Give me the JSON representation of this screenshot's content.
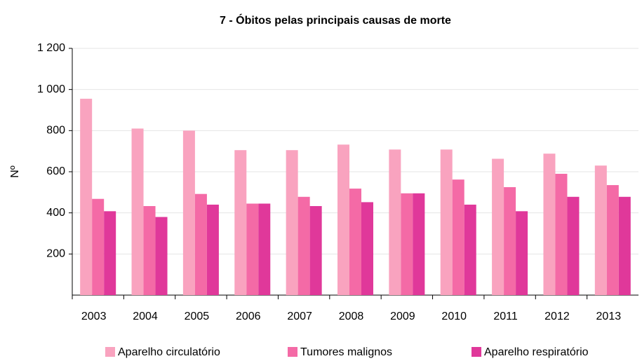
{
  "chart_data": {
    "type": "bar",
    "title": "7 - Óbitos pelas principais causas de morte",
    "y_label": "Nº",
    "categories": [
      "2003",
      "2004",
      "2005",
      "2006",
      "2007",
      "2008",
      "2009",
      "2010",
      "2011",
      "2012",
      "2013"
    ],
    "series": [
      {
        "name": "Aparelho circulatório",
        "color": "#f9a3bf",
        "values": [
          955,
          810,
          800,
          705,
          705,
          732,
          708,
          708,
          663,
          688,
          630
        ]
      },
      {
        "name": "Tumores malignos",
        "color": "#f46aa6",
        "values": [
          468,
          433,
          492,
          445,
          478,
          518,
          495,
          562,
          525,
          590,
          535
        ]
      },
      {
        "name": "Aparelho respiratório",
        "color": "#e0389a",
        "values": [
          408,
          380,
          440,
          445,
          433,
          452,
          495,
          440,
          408,
          478,
          478
        ]
      }
    ],
    "ylim": [
      0,
      1200
    ],
    "yticks": [
      200,
      400,
      600,
      800,
      {
        "value": 1000,
        "label": "1 000"
      },
      {
        "value": 1200,
        "label": "1 200"
      }
    ],
    "grid": true,
    "legend": "bottom"
  }
}
